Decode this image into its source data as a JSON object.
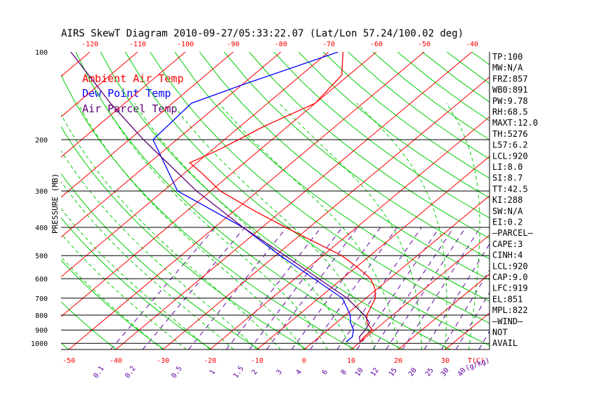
{
  "chart_data": {
    "type": "line",
    "title": "AIRS SkewT Diagram 2010-09-27/05:33:22.07 (Lat/Lon 57.24/100.02 deg)",
    "ylabel": "PRESSURE (MB)",
    "xlabel_right": "T(C)",
    "mixing_ratio_unit": "(g/kg)",
    "pressure_ticks": [
      100,
      200,
      300,
      400,
      500,
      600,
      700,
      800,
      900,
      1000
    ],
    "top_temp_ticks": [
      -120,
      -110,
      -100,
      -90,
      -80,
      -70,
      -60,
      -50,
      -40
    ],
    "bottom_temp_ticks": [
      -50,
      -40,
      -30,
      -20,
      -10,
      0,
      10,
      20,
      30
    ],
    "mixing_ratio_labels": [
      "0.1",
      "0.2",
      "0.5",
      "1",
      "1.5",
      "2",
      "3",
      "4",
      "6",
      "8",
      "10",
      "12",
      "15",
      "20",
      "25",
      "30",
      "40"
    ],
    "legend": [
      {
        "label": "Ambient Air Temp",
        "color": "#ff0000"
      },
      {
        "label": "Dew Point Temp",
        "color": "#0000ff"
      },
      {
        "label": "Air Parcel Temp",
        "color": "#5a0078"
      }
    ],
    "colors": {
      "isotherm": "#ff0000",
      "dry_adiabat": "#00cc00",
      "moist_adiabat": "#00cc00",
      "mixing_ratio": "#6000a0",
      "isobar": "#000000",
      "temperature": "#ff0000",
      "dewpoint": "#0000ff",
      "parcel": "#5a0078",
      "axis_labels": "#ff0000"
    },
    "series": [
      {
        "name": "Ambient Air Temp",
        "points": [
          {
            "p": 100,
            "t": -67
          },
          {
            "p": 120,
            "t": -61.5
          },
          {
            "p": 150,
            "t": -60
          },
          {
            "p": 180,
            "t": -65
          },
          {
            "p": 200,
            "t": -67
          },
          {
            "p": 220,
            "t": -69
          },
          {
            "p": 240,
            "t": -71.5
          },
          {
            "p": 260,
            "t": -66.5
          },
          {
            "p": 300,
            "t": -58
          },
          {
            "p": 350,
            "t": -46
          },
          {
            "p": 400,
            "t": -35
          },
          {
            "p": 450,
            "t": -25
          },
          {
            "p": 500,
            "t": -16
          },
          {
            "p": 550,
            "t": -9.5
          },
          {
            "p": 600,
            "t": -4
          },
          {
            "p": 650,
            "t": -0.5
          },
          {
            "p": 700,
            "t": 2
          },
          {
            "p": 800,
            "t": 4.5
          },
          {
            "p": 850,
            "t": 6.5
          },
          {
            "p": 900,
            "t": 9.5
          },
          {
            "p": 950,
            "t": 9.5
          },
          {
            "p": 990,
            "t": 10
          }
        ]
      },
      {
        "name": "Dew Point Temp",
        "points": [
          {
            "p": 100,
            "t": -68
          },
          {
            "p": 130,
            "t": -80
          },
          {
            "p": 150,
            "t": -86
          },
          {
            "p": 200,
            "t": -85
          },
          {
            "p": 300,
            "t": -67
          },
          {
            "p": 400,
            "t": -44
          },
          {
            "p": 500,
            "t": -29
          },
          {
            "p": 600,
            "t": -16
          },
          {
            "p": 700,
            "t": -5
          },
          {
            "p": 800,
            "t": 1
          },
          {
            "p": 850,
            "t": 3
          },
          {
            "p": 900,
            "t": 5.5
          },
          {
            "p": 950,
            "t": 7
          },
          {
            "p": 990,
            "t": 7
          }
        ]
      },
      {
        "name": "Air Parcel Temp",
        "points": [
          {
            "p": 100,
            "t": -124
          },
          {
            "p": 150,
            "t": -103
          },
          {
            "p": 200,
            "t": -87
          },
          {
            "p": 300,
            "t": -63
          },
          {
            "p": 400,
            "t": -44
          },
          {
            "p": 500,
            "t": -28
          },
          {
            "p": 600,
            "t": -15
          },
          {
            "p": 700,
            "t": -4
          },
          {
            "p": 800,
            "t": 4
          },
          {
            "p": 850,
            "t": 7
          },
          {
            "p": 900,
            "t": 8
          },
          {
            "p": 950,
            "t": 8.5
          },
          {
            "p": 990,
            "t": 10
          }
        ]
      }
    ],
    "indices": [
      "TP:100",
      "MW:N/A",
      "FRZ:857",
      "WB0:891",
      "PW:9.78",
      "RH:68.5",
      "MAXT:12.0",
      "TH:5276",
      "L57:6.2",
      "LCL:920",
      "LI:8.0",
      "SI:8.7",
      "TT:42.5",
      "KI:288",
      "SW:N/A",
      "EI:0.2",
      "—PARCEL—",
      "CAPE:3",
      "CINH:4",
      "LCL:920",
      "CAP:9.0",
      "LFC:919",
      "EL:851",
      "MPL:822",
      "—WIND—",
      "NOT",
      "AVAIL"
    ]
  }
}
